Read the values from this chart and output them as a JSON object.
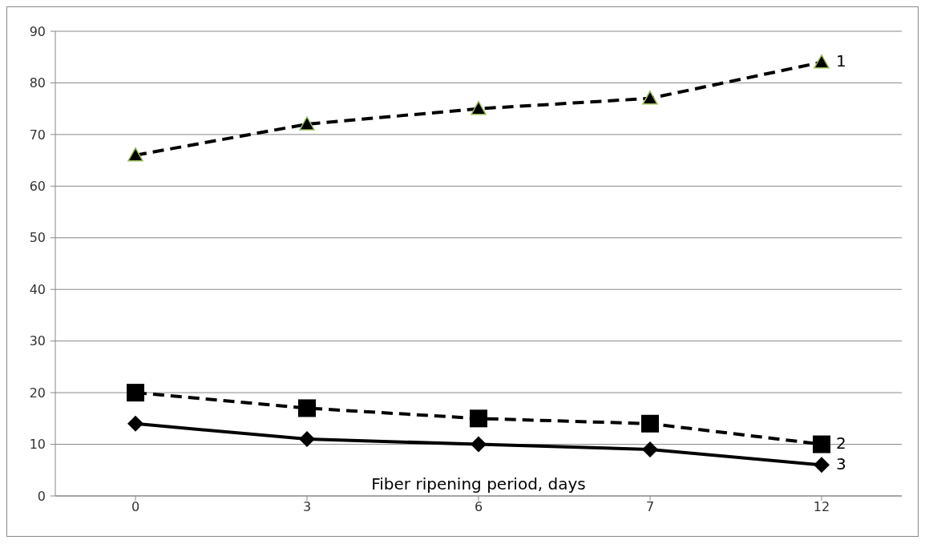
{
  "chart_data": {
    "type": "line",
    "xlabel": "Fiber ripening period, days",
    "categories": [
      "0",
      "3",
      "6",
      "7",
      "12"
    ],
    "series": [
      {
        "name": "1",
        "color": "#000000",
        "values": [
          66,
          72,
          75,
          77,
          84
        ],
        "line_style": "dashed",
        "marker": "triangle"
      },
      {
        "name": "2",
        "color": "#000000",
        "values": [
          20,
          17,
          15,
          14,
          10
        ],
        "line_style": "dashed",
        "marker": "square"
      },
      {
        "name": "3",
        "color": "#000000",
        "values": [
          14,
          11,
          10,
          9,
          6
        ],
        "line_style": "solid",
        "marker": "diamond"
      }
    ],
    "ylim": [
      0,
      90
    ],
    "yticks": [
      0,
      10,
      20,
      30,
      40,
      50,
      60,
      70,
      80,
      90
    ],
    "grid": "y"
  }
}
